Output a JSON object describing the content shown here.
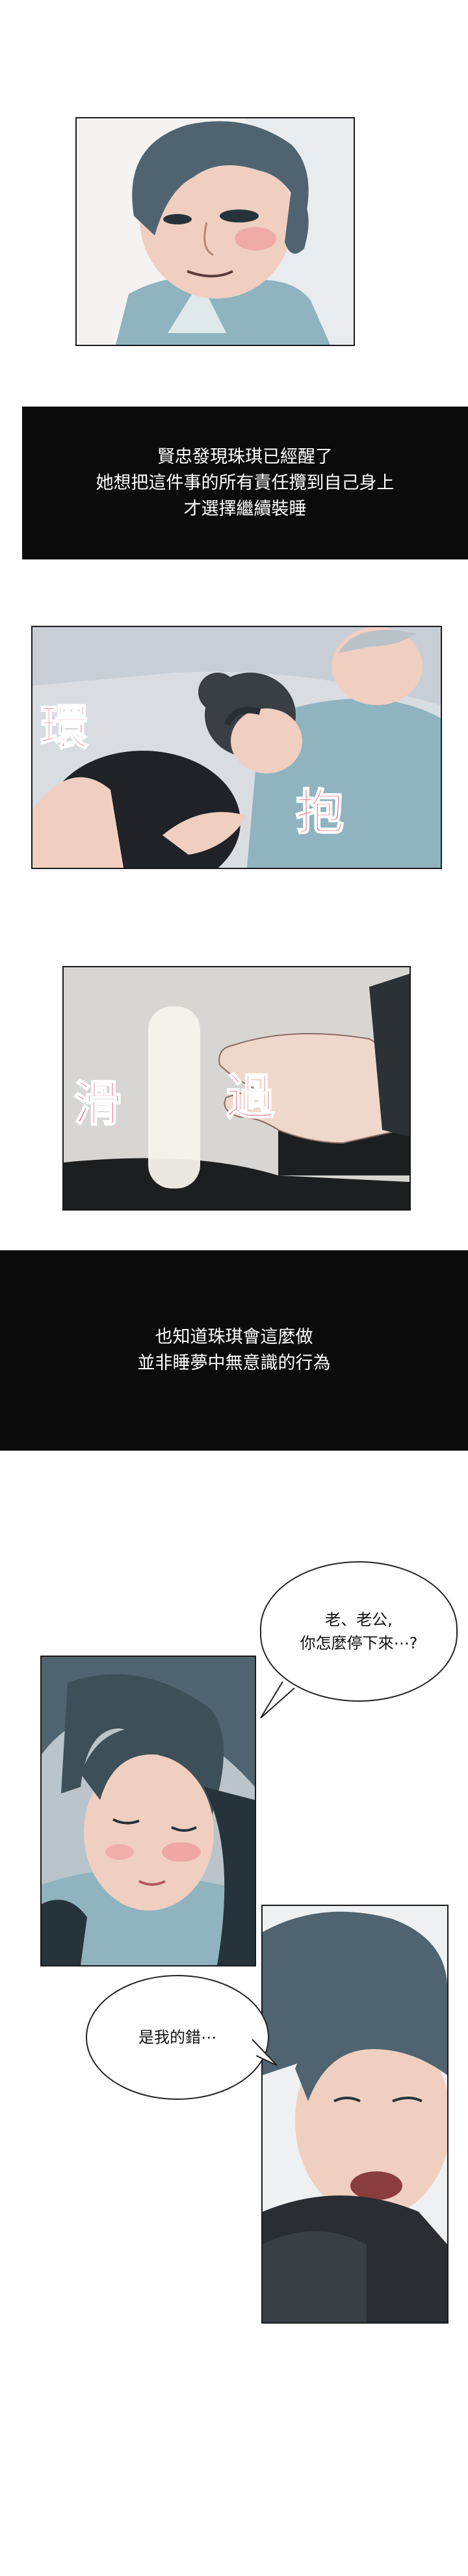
{
  "captions": {
    "c1": [
      "賢忠發現珠琪已經醒了",
      "她想把這件事的所有責任攬到自己身上",
      "才選擇繼續裝睡"
    ],
    "c2": [
      "也知道珠琪會這麼做",
      "並非睡夢中無意識的行為"
    ]
  },
  "sfx": {
    "hug_left": "環",
    "hug_right": "抱",
    "slide_left": "滑",
    "slide_right": "過"
  },
  "bubbles": {
    "wife": [
      "老、老公,",
      "你怎麼停下來⋯?"
    ],
    "husband": [
      "是我的錯⋯"
    ]
  },
  "colors": {
    "caption_bg": "#0b0b0b",
    "sfx": "#e4647b",
    "hair": "#4f6470",
    "skin": "#f0cfc0",
    "shirt": "#8fb3bf"
  }
}
